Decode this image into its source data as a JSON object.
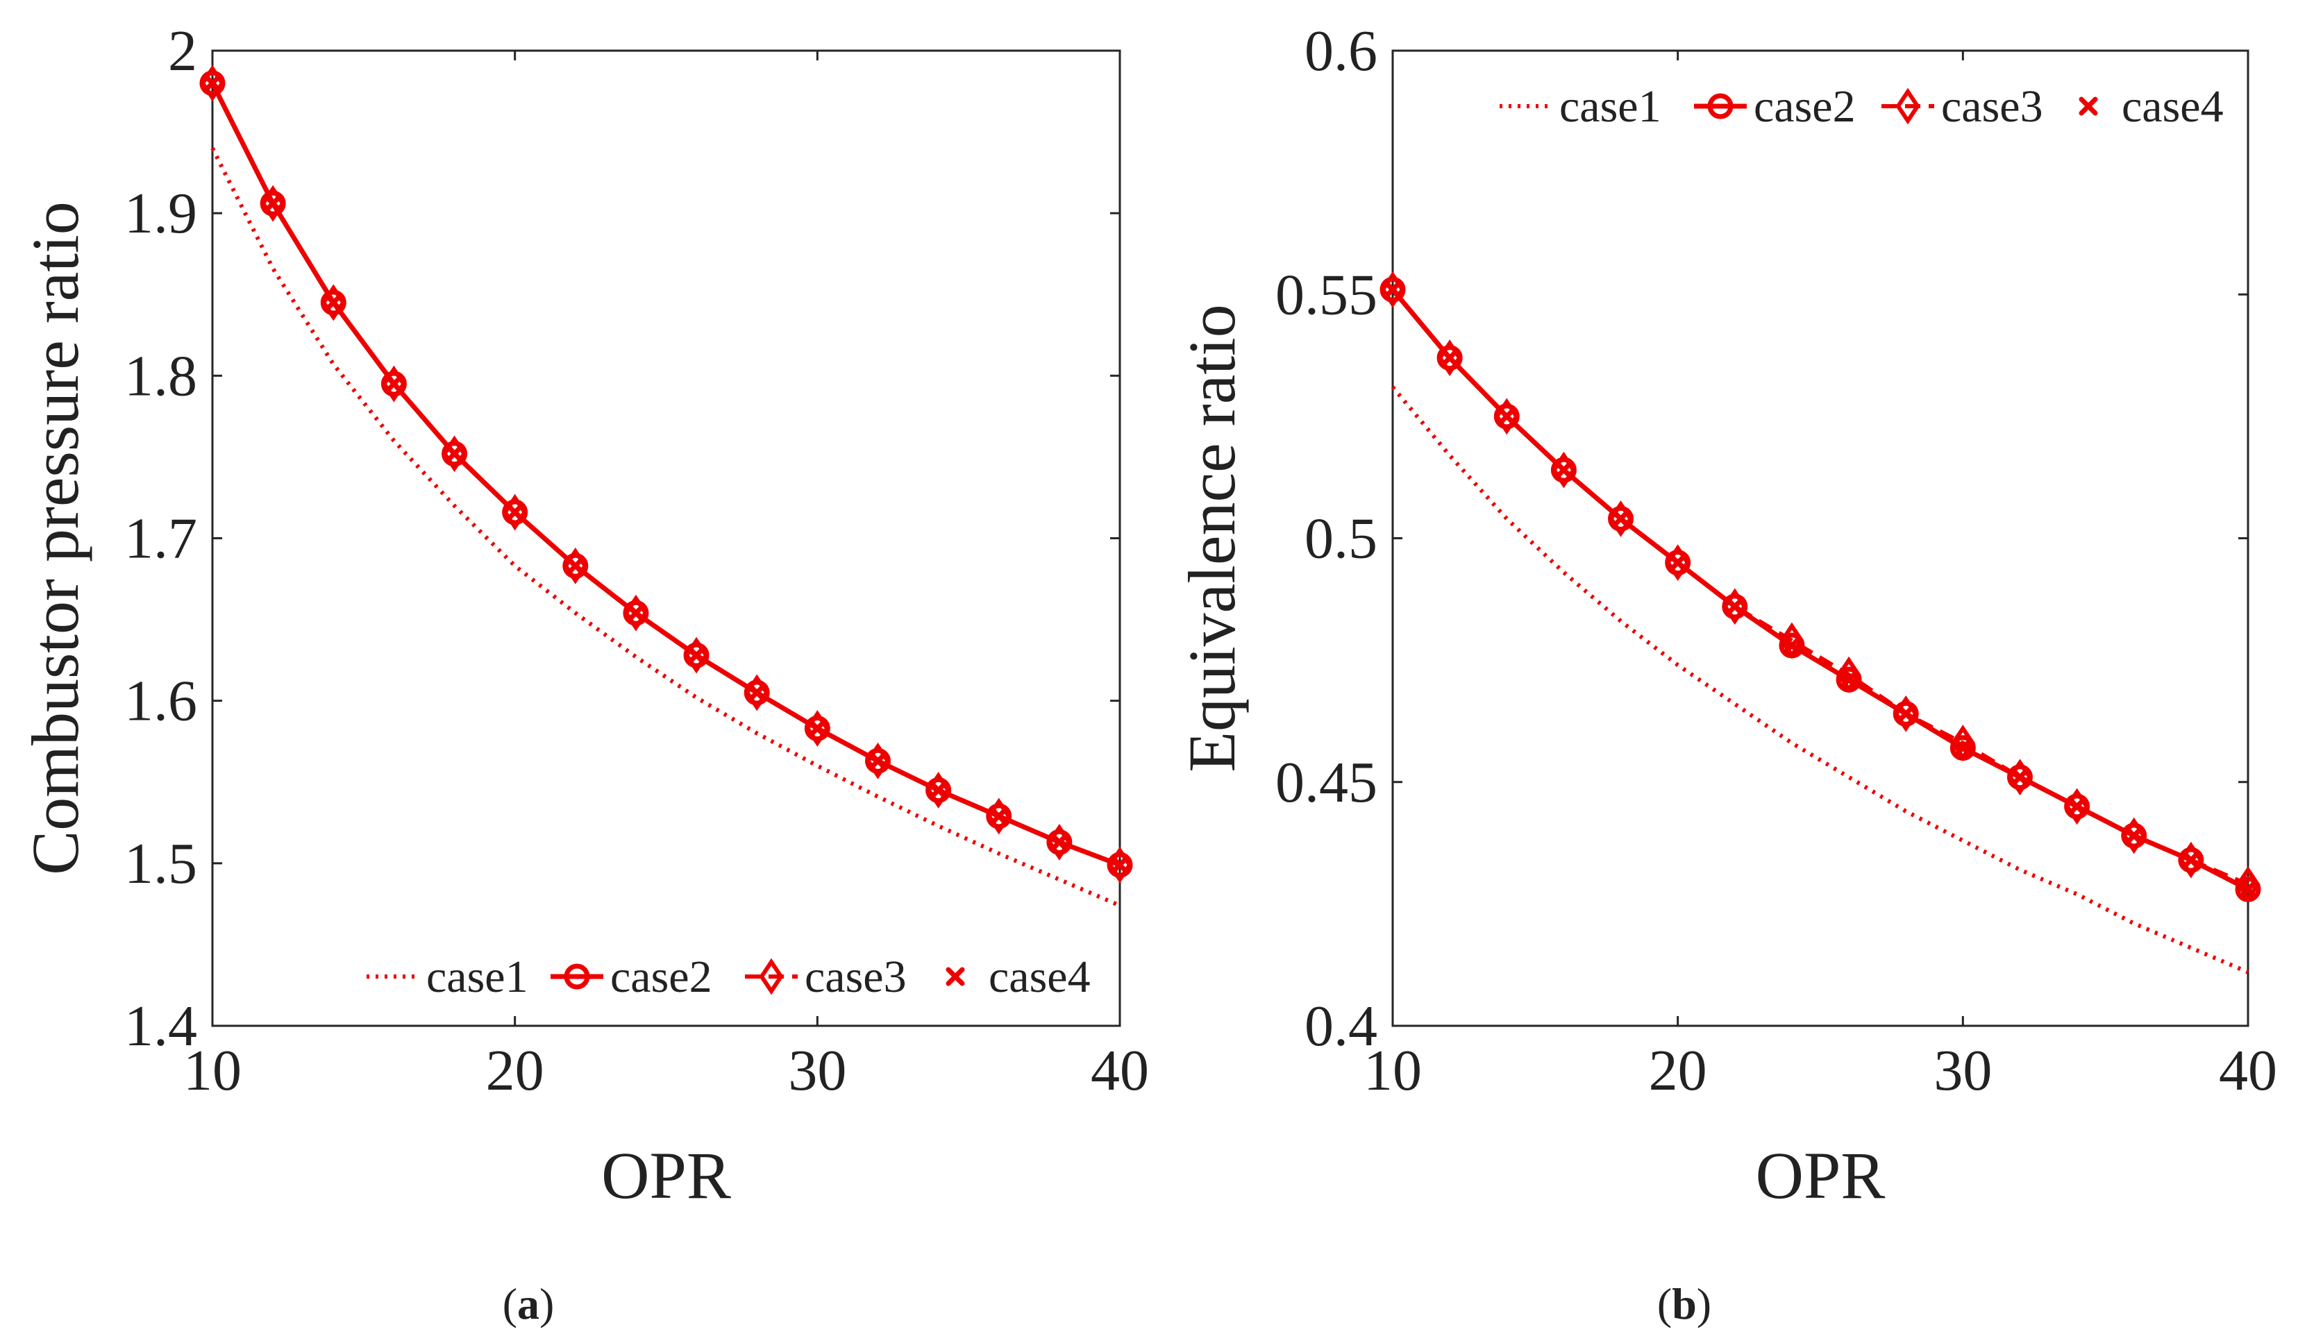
{
  "chart_data": [
    {
      "type": "line",
      "panel": "a",
      "caption_letter": "a",
      "xlabel": "OPR",
      "ylabel": "Combustor pressure ratio",
      "xlim": [
        10,
        40
      ],
      "ylim": [
        1.4,
        2.0
      ],
      "xticks": [
        10,
        20,
        30,
        40
      ],
      "xtick_labels": [
        "10",
        "20",
        "30",
        "40"
      ],
      "yticks": [
        1.4,
        1.5,
        1.6,
        1.7,
        1.8,
        1.9,
        2.0
      ],
      "ytick_labels": [
        "1.4",
        "1.5",
        "1.6",
        "1.7",
        "1.8",
        "1.9",
        "2"
      ],
      "legend_position": "bottom-right",
      "x": [
        10,
        12,
        14,
        16,
        18,
        20,
        22,
        24,
        26,
        28,
        30,
        32,
        34,
        36,
        38,
        40
      ],
      "series": [
        {
          "name": "case1",
          "style": "dotted",
          "marker": "none",
          "values": [
            1.94,
            1.866,
            1.807,
            1.76,
            1.72,
            1.683,
            1.654,
            1.627,
            1.602,
            1.58,
            1.56,
            1.541,
            1.523,
            1.506,
            1.49,
            1.474
          ]
        },
        {
          "name": "case2",
          "style": "solid",
          "marker": "circle",
          "values": [
            1.98,
            1.906,
            1.845,
            1.795,
            1.752,
            1.716,
            1.683,
            1.654,
            1.628,
            1.605,
            1.583,
            1.563,
            1.545,
            1.529,
            1.513,
            1.499
          ]
        },
        {
          "name": "case3",
          "style": "dashed",
          "marker": "diamond",
          "values": [
            1.98,
            1.906,
            1.845,
            1.795,
            1.752,
            1.716,
            1.683,
            1.654,
            1.628,
            1.605,
            1.583,
            1.563,
            1.545,
            1.529,
            1.513,
            1.499
          ]
        },
        {
          "name": "case4",
          "style": "none",
          "marker": "x",
          "values": [
            1.98,
            1.906,
            1.845,
            1.795,
            1.752,
            1.716,
            1.683,
            1.654,
            1.628,
            1.605,
            1.583,
            1.563,
            1.545,
            1.529,
            1.513,
            1.499
          ]
        }
      ]
    },
    {
      "type": "line",
      "panel": "b",
      "caption_letter": "b",
      "xlabel": "OPR",
      "ylabel": "Equivalence ratio",
      "xlim": [
        10,
        40
      ],
      "ylim": [
        0.4,
        0.6
      ],
      "xticks": [
        10,
        20,
        30,
        40
      ],
      "xtick_labels": [
        "10",
        "20",
        "30",
        "40"
      ],
      "yticks": [
        0.4,
        0.45,
        0.5,
        0.55,
        0.6
      ],
      "ytick_labels": [
        "0.4",
        "0.45",
        "0.5",
        "0.55",
        "0.6"
      ],
      "legend_position": "top-right",
      "x": [
        10,
        12,
        14,
        16,
        18,
        20,
        22,
        24,
        26,
        28,
        30,
        32,
        34,
        36,
        38,
        40
      ],
      "series": [
        {
          "name": "case1",
          "style": "dotted",
          "marker": "none",
          "values": [
            0.531,
            0.517,
            0.504,
            0.493,
            0.483,
            0.474,
            0.466,
            0.458,
            0.451,
            0.444,
            0.438,
            0.432,
            0.427,
            0.421,
            0.416,
            0.411
          ]
        },
        {
          "name": "case2",
          "style": "solid",
          "marker": "circle",
          "values": [
            0.551,
            0.537,
            0.525,
            0.514,
            0.504,
            0.495,
            0.486,
            0.478,
            0.471,
            0.464,
            0.457,
            0.451,
            0.445,
            0.439,
            0.434,
            0.428
          ]
        },
        {
          "name": "case3",
          "style": "dashed",
          "marker": "diamond",
          "values": [
            0.551,
            0.537,
            0.525,
            0.514,
            0.504,
            0.495,
            0.486,
            0.479,
            0.472,
            0.464,
            0.458,
            0.451,
            0.445,
            0.439,
            0.434,
            0.429
          ]
        },
        {
          "name": "case4",
          "style": "none",
          "marker": "x",
          "values": [
            0.551,
            0.537,
            0.525,
            0.514,
            0.504,
            0.495,
            0.486,
            0.478,
            0.471,
            0.464,
            0.457,
            0.451,
            0.445,
            0.439,
            0.434,
            0.428
          ]
        }
      ]
    }
  ],
  "colors": {
    "series": "#ee0000",
    "axis": "#262626",
    "text": "#222222"
  }
}
